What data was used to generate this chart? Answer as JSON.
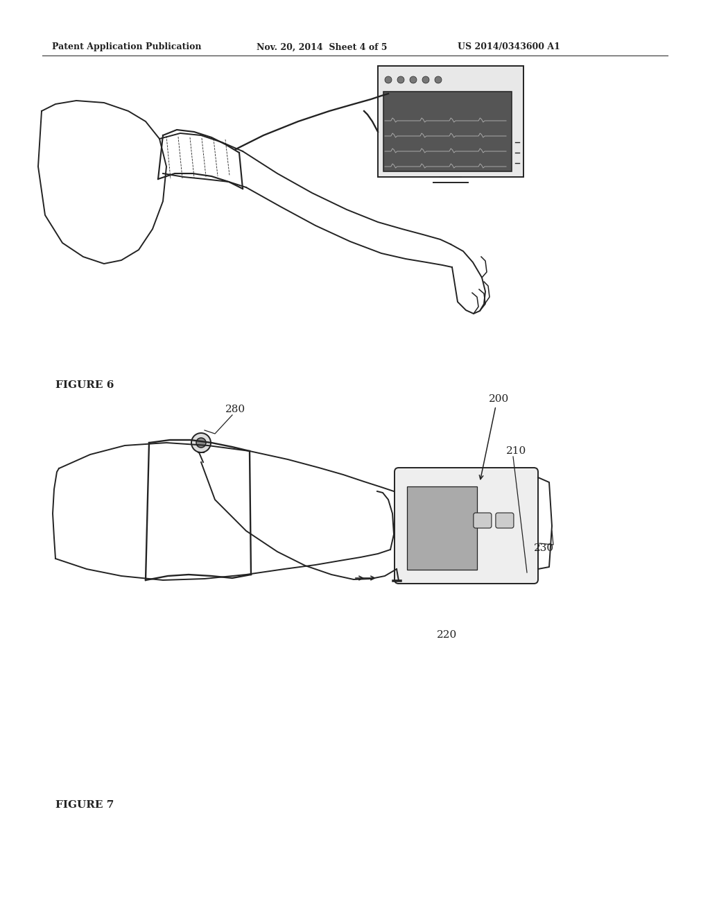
{
  "bg_color": "#ffffff",
  "header_left": "Patent Application Publication",
  "header_center": "Nov. 20, 2014  Sheet 4 of 5",
  "header_right": "US 2014/0343600 A1",
  "fig6_label": "FIGURE 6",
  "fig7_label": "FIGURE 7",
  "label_200": "200",
  "label_210": "210",
  "label_220": "220",
  "label_230": "230",
  "label_280": "280"
}
